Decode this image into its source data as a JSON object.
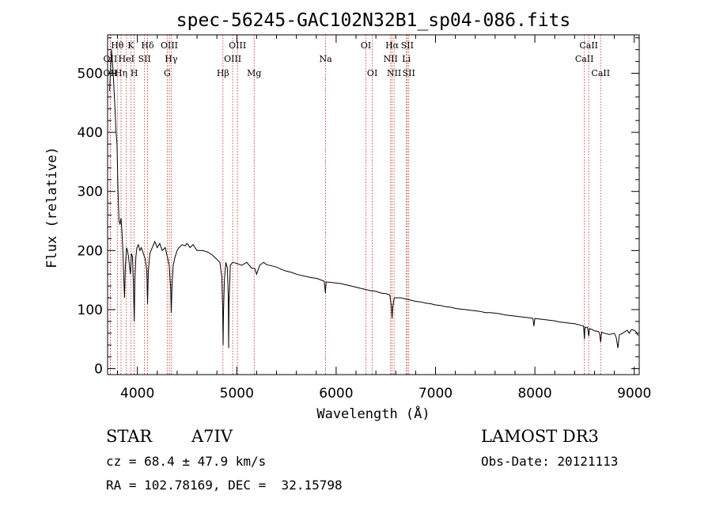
{
  "chart_data": {
    "type": "line",
    "title": "spec-56245-GAC102N32B1_sp04-086.fits",
    "xlabel": "Wavelength (Å)",
    "ylabel": "Flux (relative)",
    "xlim": [
      3700,
      9050
    ],
    "ylim": [
      -10,
      565
    ],
    "xticks": [
      4000,
      5000,
      6000,
      7000,
      8000,
      9000
    ],
    "yticks": [
      0,
      100,
      200,
      300,
      400,
      500
    ],
    "series": [
      {
        "name": "spectrum",
        "points": [
          [
            3720,
            470
          ],
          [
            3740,
            540
          ],
          [
            3755,
            505
          ],
          [
            3770,
            455
          ],
          [
            3785,
            400
          ],
          [
            3795,
            380
          ],
          [
            3805,
            300
          ],
          [
            3815,
            250
          ],
          [
            3825,
            245
          ],
          [
            3835,
            255
          ],
          [
            3845,
            230
          ],
          [
            3855,
            195
          ],
          [
            3862,
            160
          ],
          [
            3870,
            120
          ],
          [
            3878,
            170
          ],
          [
            3890,
            205
          ],
          [
            3900,
            200
          ],
          [
            3910,
            190
          ],
          [
            3920,
            175
          ],
          [
            3930,
            160
          ],
          [
            3940,
            195
          ],
          [
            3950,
            190
          ],
          [
            3960,
            140
          ],
          [
            3968,
            80
          ],
          [
            3975,
            150
          ],
          [
            3985,
            190
          ],
          [
            3995,
            205
          ],
          [
            4010,
            210
          ],
          [
            4025,
            200
          ],
          [
            4040,
            205
          ],
          [
            4060,
            195
          ],
          [
            4080,
            185
          ],
          [
            4095,
            165
          ],
          [
            4102,
            110
          ],
          [
            4110,
            165
          ],
          [
            4125,
            195
          ],
          [
            4150,
            205
          ],
          [
            4175,
            215
          ],
          [
            4200,
            205
          ],
          [
            4225,
            212
          ],
          [
            4250,
            200
          ],
          [
            4280,
            205
          ],
          [
            4300,
            190
          ],
          [
            4320,
            175
          ],
          [
            4335,
            135
          ],
          [
            4341,
            95
          ],
          [
            4348,
            140
          ],
          [
            4360,
            175
          ],
          [
            4380,
            190
          ],
          [
            4400,
            200
          ],
          [
            4420,
            205
          ],
          [
            4450,
            210
          ],
          [
            4480,
            208
          ],
          [
            4500,
            212
          ],
          [
            4530,
            205
          ],
          [
            4560,
            210
          ],
          [
            4600,
            200
          ],
          [
            4650,
            200
          ],
          [
            4700,
            198
          ],
          [
            4750,
            193
          ],
          [
            4800,
            185
          ],
          [
            4830,
            180
          ],
          [
            4850,
            155
          ],
          [
            4858,
            100
          ],
          [
            4862,
            40
          ],
          [
            4866,
            95
          ],
          [
            4875,
            150
          ],
          [
            4890,
            180
          ],
          [
            4905,
            170
          ],
          [
            4915,
            120
          ],
          [
            4918,
            35
          ],
          [
            4922,
            110
          ],
          [
            4935,
            175
          ],
          [
            4960,
            180
          ],
          [
            5000,
            178
          ],
          [
            5050,
            175
          ],
          [
            5100,
            180
          ],
          [
            5150,
            170
          ],
          [
            5180,
            170
          ],
          [
            5200,
            160
          ],
          [
            5230,
            175
          ],
          [
            5270,
            180
          ],
          [
            5300,
            176
          ],
          [
            5350,
            174
          ],
          [
            5400,
            172
          ],
          [
            5450,
            168
          ],
          [
            5500,
            165
          ],
          [
            5550,
            163
          ],
          [
            5600,
            160
          ],
          [
            5650,
            158
          ],
          [
            5700,
            156
          ],
          [
            5750,
            154
          ],
          [
            5800,
            153
          ],
          [
            5850,
            150
          ],
          [
            5880,
            148
          ],
          [
            5892,
            128
          ],
          [
            5900,
            147
          ],
          [
            5950,
            146
          ],
          [
            6000,
            145
          ],
          [
            6050,
            144
          ],
          [
            6100,
            142
          ],
          [
            6150,
            140
          ],
          [
            6200,
            138
          ],
          [
            6250,
            136
          ],
          [
            6300,
            134
          ],
          [
            6350,
            132
          ],
          [
            6400,
            131
          ],
          [
            6450,
            128
          ],
          [
            6500,
            127
          ],
          [
            6540,
            125
          ],
          [
            6556,
            105
          ],
          [
            6563,
            85
          ],
          [
            6570,
            105
          ],
          [
            6585,
            120
          ],
          [
            6600,
            120
          ],
          [
            6650,
            120
          ],
          [
            6700,
            118
          ],
          [
            6750,
            116
          ],
          [
            6800,
            114
          ],
          [
            6850,
            113
          ],
          [
            6900,
            111
          ],
          [
            6950,
            110
          ],
          [
            7000,
            108
          ],
          [
            7050,
            107
          ],
          [
            7100,
            105
          ],
          [
            7150,
            104
          ],
          [
            7200,
            102
          ],
          [
            7250,
            101
          ],
          [
            7300,
            100
          ],
          [
            7350,
            99
          ],
          [
            7400,
            98
          ],
          [
            7450,
            97
          ],
          [
            7500,
            95
          ],
          [
            7550,
            95
          ],
          [
            7600,
            94
          ],
          [
            7650,
            93
          ],
          [
            7700,
            91
          ],
          [
            7750,
            90
          ],
          [
            7800,
            89
          ],
          [
            7850,
            88
          ],
          [
            7900,
            87
          ],
          [
            7950,
            86
          ],
          [
            7980,
            85
          ],
          [
            7990,
            72
          ],
          [
            8000,
            85
          ],
          [
            8050,
            84
          ],
          [
            8100,
            83
          ],
          [
            8150,
            82
          ],
          [
            8200,
            81
          ],
          [
            8250,
            79
          ],
          [
            8300,
            78
          ],
          [
            8350,
            77
          ],
          [
            8400,
            76
          ],
          [
            8450,
            74
          ],
          [
            8490,
            72
          ],
          [
            8498,
            50
          ],
          [
            8505,
            70
          ],
          [
            8530,
            70
          ],
          [
            8542,
            55
          ],
          [
            8550,
            68
          ],
          [
            8580,
            66
          ],
          [
            8600,
            64
          ],
          [
            8640,
            63
          ],
          [
            8650,
            60
          ],
          [
            8662,
            45
          ],
          [
            8672,
            62
          ],
          [
            8700,
            60
          ],
          [
            8750,
            58
          ],
          [
            8800,
            60
          ],
          [
            8820,
            52
          ],
          [
            8835,
            35
          ],
          [
            8850,
            57
          ],
          [
            8880,
            60
          ],
          [
            8900,
            62
          ],
          [
            8930,
            65
          ],
          [
            8950,
            60
          ],
          [
            8970,
            66
          ],
          [
            9000,
            65
          ],
          [
            9020,
            62
          ],
          [
            9040,
            56
          ]
        ]
      }
    ],
    "emission_lines": [
      {
        "label": "OII",
        "wavelength": 3727,
        "row": 2
      },
      {
        "label": "OII",
        "wavelength": 3727,
        "row": 3
      },
      {
        "label": "Hθ",
        "wavelength": 3798,
        "row": 1
      },
      {
        "label": "Hη",
        "wavelength": 3835,
        "row": 3
      },
      {
        "label": "HeI",
        "wavelength": 3889,
        "row": 2
      },
      {
        "label": "K",
        "wavelength": 3934,
        "row": 1
      },
      {
        "label": "H",
        "wavelength": 3968,
        "row": 3
      },
      {
        "label": "SII",
        "wavelength": 4072,
        "row": 2
      },
      {
        "label": "Hδ",
        "wavelength": 4102,
        "row": 1
      },
      {
        "label": "G",
        "wavelength": 4300,
        "row": 3
      },
      {
        "label": "OIII",
        "wavelength": 4321,
        "row": 1
      },
      {
        "label": "Hγ",
        "wavelength": 4340,
        "row": 2
      },
      {
        "label": "Hβ",
        "wavelength": 4861,
        "row": 3
      },
      {
        "label": "OIII",
        "wavelength": 4959,
        "row": 2
      },
      {
        "label": "OIII",
        "wavelength": 5007,
        "row": 1
      },
      {
        "label": "Mg",
        "wavelength": 5175,
        "row": 3
      },
      {
        "label": "Na",
        "wavelength": 5894,
        "row": 2
      },
      {
        "label": "OI",
        "wavelength": 6300,
        "row": 1
      },
      {
        "label": "OI",
        "wavelength": 6364,
        "row": 3
      },
      {
        "label": "NII",
        "wavelength": 6548,
        "row": 2
      },
      {
        "label": "Hα",
        "wavelength": 6563,
        "row": 1
      },
      {
        "label": "NII",
        "wavelength": 6583,
        "row": 3
      },
      {
        "label": "Li",
        "wavelength": 6707,
        "row": 2
      },
      {
        "label": "SII",
        "wavelength": 6716,
        "row": 1
      },
      {
        "label": "SII",
        "wavelength": 6731,
        "row": 3
      },
      {
        "label": "CaII",
        "wavelength": 8498,
        "row": 2
      },
      {
        "label": "CaII",
        "wavelength": 8542,
        "row": 1
      },
      {
        "label": "CaII",
        "wavelength": 8662,
        "row": 3
      }
    ]
  },
  "info": {
    "class_label": "STAR",
    "subclass": "A7IV",
    "survey": "LAMOST DR3",
    "cz": "cz = 68.4 ± 47.9 km/s",
    "obs_date": "Obs-Date: 20121113",
    "coords": "RA = 102.78169, DEC =  32.15798"
  },
  "colors": {
    "spectrum": "#000000",
    "line_marker": "#cc2222",
    "axis": "#000000"
  }
}
